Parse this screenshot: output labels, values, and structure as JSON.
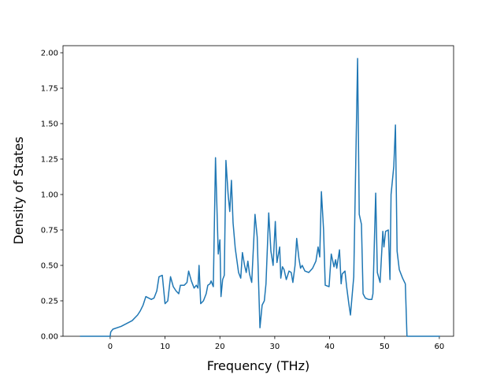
{
  "chart_data": {
    "type": "line",
    "xlabel": "Frequency (THz)",
    "ylabel": "Density of States",
    "color": "#1f77b4",
    "x": [
      -5.5,
      0,
      0.1,
      0.5,
      2,
      4,
      5,
      5.5,
      6,
      6.5,
      7,
      7.5,
      8,
      8.5,
      8.9,
      9.5,
      10,
      10.5,
      11,
      11.5,
      12,
      12.5,
      12.8,
      13.5,
      14,
      14.3,
      14.8,
      15.3,
      15.7,
      16,
      16.2,
      16.5,
      17,
      17.5,
      17.8,
      18.2,
      18.4,
      18.8,
      19.2,
      19.7,
      20.0,
      20.2,
      20.5,
      20.8,
      21.1,
      21.5,
      21.8,
      22.1,
      22.4,
      22.8,
      23.4,
      23.8,
      24.1,
      24.5,
      24.8,
      25.1,
      25.4,
      25.8,
      26.4,
      26.8,
      27.3,
      27.7,
      28.1,
      28.4,
      28.9,
      29.3,
      29.7,
      30.1,
      30.4,
      30.9,
      31.1,
      31.4,
      31.7,
      32.1,
      32.6,
      33.0,
      33.3,
      33.7,
      34.0,
      34.4,
      34.7,
      35.0,
      35.5,
      36.2,
      36.9,
      37.5,
      37.9,
      38.2,
      38.5,
      38.9,
      39.2,
      39.9,
      40.3,
      40.8,
      41.1,
      41.3,
      41.8,
      42.1,
      42.3,
      42.8,
      43.1,
      43.5,
      43.8,
      44.4,
      45.1,
      45.4,
      45.8,
      46.1,
      46.5,
      47.1,
      47.7,
      47.9,
      48.4,
      48.7,
      49.2,
      49.7,
      49.9,
      50.2,
      50.7,
      51.0,
      51.2,
      51.7,
      52.0,
      52.3,
      52.7,
      53.3,
      53.8,
      54.1,
      60.1
    ],
    "values": [
      0,
      0,
      0.03,
      0.05,
      0.07,
      0.11,
      0.15,
      0.18,
      0.22,
      0.28,
      0.27,
      0.26,
      0.27,
      0.32,
      0.42,
      0.43,
      0.23,
      0.25,
      0.42,
      0.35,
      0.32,
      0.3,
      0.36,
      0.36,
      0.38,
      0.46,
      0.39,
      0.34,
      0.36,
      0.34,
      0.5,
      0.23,
      0.25,
      0.3,
      0.36,
      0.37,
      0.39,
      0.35,
      1.26,
      0.58,
      0.68,
      0.28,
      0.4,
      0.43,
      1.24,
      1.0,
      0.88,
      1.1,
      0.8,
      0.62,
      0.45,
      0.41,
      0.59,
      0.5,
      0.45,
      0.53,
      0.44,
      0.38,
      0.86,
      0.7,
      0.06,
      0.22,
      0.25,
      0.37,
      0.87,
      0.6,
      0.5,
      0.81,
      0.52,
      0.63,
      0.41,
      0.49,
      0.47,
      0.4,
      0.46,
      0.45,
      0.38,
      0.5,
      0.69,
      0.55,
      0.48,
      0.5,
      0.46,
      0.45,
      0.48,
      0.53,
      0.63,
      0.56,
      1.02,
      0.75,
      0.36,
      0.35,
      0.58,
      0.49,
      0.54,
      0.48,
      0.61,
      0.37,
      0.44,
      0.46,
      0.35,
      0.23,
      0.15,
      0.42,
      1.96,
      0.86,
      0.79,
      0.3,
      0.27,
      0.26,
      0.26,
      0.3,
      1.01,
      0.45,
      0.38,
      0.74,
      0.63,
      0.74,
      0.75,
      0.4,
      1.0,
      1.2,
      1.49,
      0.6,
      0.47,
      0.41,
      0.37,
      0,
      0
    ],
    "xlim": [
      -8.6,
      62.6
    ],
    "xticks": [
      0,
      10,
      20,
      30,
      40,
      50,
      60
    ],
    "ylim": [
      0,
      2.05
    ],
    "yticks": [
      {
        "value": 0,
        "label": "0.00"
      },
      {
        "value": 0.25,
        "label": "0.25"
      },
      {
        "value": 0.5,
        "label": "0.50"
      },
      {
        "value": 0.75,
        "label": "0.75"
      },
      {
        "value": 1,
        "label": "1.00"
      },
      {
        "value": 1.25,
        "label": "1.25"
      },
      {
        "value": 1.5,
        "label": "1.50"
      },
      {
        "value": 1.75,
        "label": "1.75"
      },
      {
        "value": 2,
        "label": "2.00"
      }
    ]
  }
}
